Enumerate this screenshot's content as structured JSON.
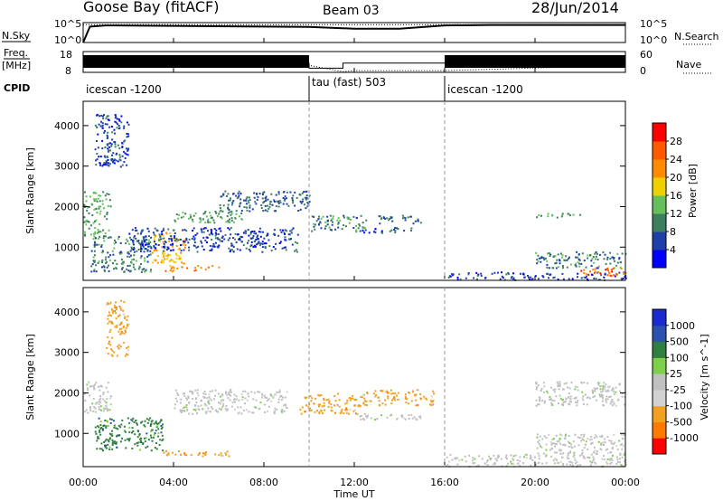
{
  "header": {
    "station": "Goose Bay (fitACF)",
    "beam": "Beam 03",
    "date": "28/Jun/2014"
  },
  "noise_panel": {
    "left_label": "N.Sky",
    "left_ticks": [
      "10^5",
      "10^0"
    ],
    "right_ticks": [
      "10^5",
      "10^0"
    ],
    "right_label": "N.Search"
  },
  "freq_panel": {
    "left_label_line1": "Freq.",
    "left_label_line2": "[MHz]",
    "left_ticks": [
      "18",
      "8"
    ],
    "right_ticks": [
      "60",
      "0"
    ],
    "right_label": "Nave"
  },
  "cpid_panel": {
    "label": "CPID",
    "segments": [
      {
        "start_hour": 0,
        "end_hour": 10,
        "text": "icescan -1200"
      },
      {
        "start_hour": 10,
        "end_hour": 16,
        "text": "tau (fast) 503"
      },
      {
        "start_hour": 16,
        "end_hour": 24,
        "text": "icescan -1200"
      }
    ]
  },
  "colors": {
    "power_scale": [
      "#0000ff",
      "#1f3fa8",
      "#3b7f5f",
      "#66c05a",
      "#f0d000",
      "#ff8c00",
      "#ff5a00",
      "#ff0000"
    ],
    "velocity_scale": [
      "#1a2ad0",
      "#2a50b0",
      "#2f7f3f",
      "#7ed04a",
      "#c0c0c0",
      "#d2d2d2",
      "#f2a020",
      "#ff7a00",
      "#ff0000"
    ]
  },
  "chart_data": [
    {
      "type": "line",
      "title": "",
      "xlabel": "",
      "ylabel": "N.Sky",
      "series": [
        {
          "name": "N.Sky",
          "x": [
            0,
            0.3,
            1,
            4,
            8,
            10,
            12,
            14,
            16,
            18,
            22,
            24
          ],
          "y": [
            1,
            10000,
            20000,
            15000,
            10000,
            8000,
            3000,
            3000,
            20000,
            25000,
            25000,
            25000
          ]
        },
        {
          "name": "N.Search",
          "x": [
            0,
            4,
            8,
            12,
            16,
            20,
            24
          ],
          "y": [
            30000,
            30000,
            30000,
            30000,
            30000,
            30000,
            30000
          ]
        }
      ],
      "ylim": [
        1,
        100000
      ]
    },
    {
      "type": "line",
      "title": "",
      "xlabel": "",
      "ylabel": "Freq. [MHz]",
      "series": [
        {
          "name": "Freq.",
          "x": [
            0,
            10,
            10,
            11.5,
            11.5,
            16,
            16,
            24
          ],
          "y": [
            12.5,
            12.5,
            10,
            10,
            12.5,
            12.5,
            12.5,
            12.5
          ]
        },
        {
          "name": "Nave",
          "x": [
            0,
            10,
            11.5,
            12,
            16,
            24
          ],
          "y": [
            20,
            20,
            2,
            5,
            5,
            20
          ]
        }
      ],
      "ylim": [
        8,
        18
      ],
      "y2lim": [
        0,
        60
      ]
    },
    {
      "type": "heatmap",
      "title": "",
      "xlabel": "",
      "ylabel": "Slant Range [km]",
      "x_ticks": [
        "00:00",
        "04:00",
        "08:00",
        "12:00",
        "16:00",
        "20:00",
        "00:00"
      ],
      "xlim": [
        0,
        24
      ],
      "y_ticks": [
        "1000",
        "2000",
        "3000",
        "4000"
      ],
      "ylim": [
        180,
        4600
      ],
      "colorbar": {
        "label": "Power [dB]",
        "ticks": [
          "28",
          "24",
          "20",
          "16",
          "12",
          "8",
          "4"
        ],
        "range": [
          0,
          30
        ]
      },
      "regions": [
        {
          "x": [
            0,
            1.2
          ],
          "y": [
            1300,
            2400
          ],
          "v": 12
        },
        {
          "x": [
            0.3,
            3
          ],
          "y": [
            400,
            1300
          ],
          "v": 10
        },
        {
          "x": [
            3,
            4.5
          ],
          "y": [
            600,
            1400
          ],
          "v": 20
        },
        {
          "x": [
            3.5,
            6
          ],
          "y": [
            420,
            560
          ],
          "v": 22
        },
        {
          "x": [
            2,
            9.5
          ],
          "y": [
            900,
            1500
          ],
          "v": 6
        },
        {
          "x": [
            4,
            7
          ],
          "y": [
            1600,
            1900
          ],
          "v": 12
        },
        {
          "x": [
            6,
            10
          ],
          "y": [
            1900,
            2400
          ],
          "v": 8
        },
        {
          "x": [
            10,
            12.5
          ],
          "y": [
            1400,
            1800
          ],
          "v": 10
        },
        {
          "x": [
            12,
            14.5
          ],
          "y": [
            1350,
            1500
          ],
          "v": 6
        },
        {
          "x": [
            13,
            15
          ],
          "y": [
            1600,
            1800
          ],
          "v": 8
        },
        {
          "x": [
            16,
            24
          ],
          "y": [
            200,
            400
          ],
          "v": 6
        },
        {
          "x": [
            20,
            24
          ],
          "y": [
            500,
            900
          ],
          "v": 10
        },
        {
          "x": [
            22,
            24
          ],
          "y": [
            300,
            500
          ],
          "v": 26
        },
        {
          "x": [
            20,
            22
          ],
          "y": [
            1750,
            1850
          ],
          "v": 12
        },
        {
          "x": [
            0.5,
            2
          ],
          "y": [
            3000,
            4300
          ],
          "v": 6
        }
      ]
    },
    {
      "type": "heatmap",
      "title": "",
      "xlabel": "Time UT",
      "ylabel": "Slant Range [km]",
      "x_ticks": [
        "00:00",
        "04:00",
        "08:00",
        "12:00",
        "16:00",
        "20:00",
        "00:00"
      ],
      "xlim": [
        0,
        24
      ],
      "y_ticks": [
        "1000",
        "2000",
        "3000",
        "4000"
      ],
      "ylim": [
        180,
        4600
      ],
      "colorbar": {
        "label": "Velocity [m s^-1]",
        "ticks": [
          "1000",
          "500",
          "100",
          "25",
          "-25",
          "-100",
          "-500",
          "-1000"
        ],
        "range": [
          -1000,
          1000
        ]
      },
      "regions": [
        {
          "x": [
            0,
            1.2
          ],
          "y": [
            1500,
            2300
          ],
          "v": 0
        },
        {
          "x": [
            0.5,
            3.5
          ],
          "y": [
            600,
            1400
          ],
          "v": 150
        },
        {
          "x": [
            3.5,
            6.5
          ],
          "y": [
            450,
            600
          ],
          "v": -200
        },
        {
          "x": [
            4,
            9
          ],
          "y": [
            1500,
            2100
          ],
          "v": 0
        },
        {
          "x": [
            9.5,
            12.5
          ],
          "y": [
            1500,
            2000
          ],
          "v": -300
        },
        {
          "x": [
            12.5,
            15.5
          ],
          "y": [
            1700,
            2100
          ],
          "v": -500
        },
        {
          "x": [
            12,
            15
          ],
          "y": [
            1350,
            1500
          ],
          "v": 0
        },
        {
          "x": [
            16,
            24
          ],
          "y": [
            200,
            500
          ],
          "v": 0
        },
        {
          "x": [
            20,
            24
          ],
          "y": [
            500,
            1000
          ],
          "v": 0
        },
        {
          "x": [
            20,
            24
          ],
          "y": [
            1700,
            2300
          ],
          "v": 0
        },
        {
          "x": [
            1,
            2
          ],
          "y": [
            2900,
            4300
          ],
          "v": -200
        }
      ]
    }
  ]
}
